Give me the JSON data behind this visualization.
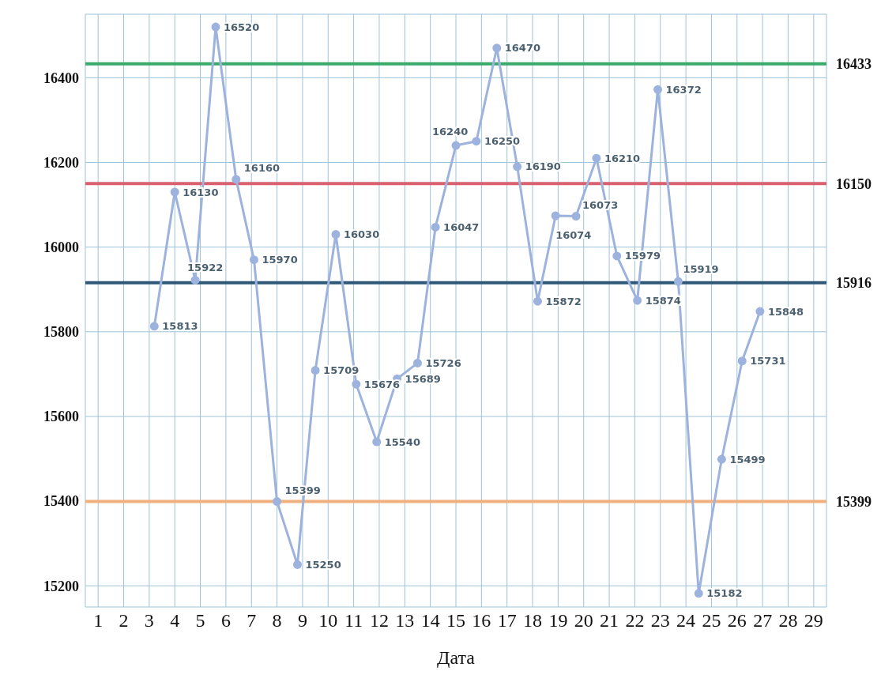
{
  "chart_data": {
    "type": "line",
    "xlabel": "Дата",
    "x": [
      3.2,
      4.0,
      4.8,
      5.6,
      6.4,
      7.1,
      8.0,
      8.8,
      9.5,
      10.3,
      11.1,
      11.9,
      12.7,
      13.5,
      14.2,
      15.0,
      15.8,
      16.6,
      17.4,
      18.2,
      18.9,
      19.7,
      20.5,
      21.3,
      22.1,
      22.9,
      23.7,
      24.5,
      25.4,
      26.2,
      26.9
    ],
    "series": [
      {
        "color": "#9db3de",
        "values": [
          15813,
          16130,
          15922,
          16520,
          16160,
          15970,
          15399,
          15250,
          15709,
          16030,
          15676,
          15540,
          15689,
          15726,
          16047,
          16240,
          16250,
          16470,
          16190,
          15872,
          16074,
          16073,
          16210,
          15979,
          15874,
          16372,
          15919,
          15182,
          15499,
          15731,
          15848
        ]
      }
    ],
    "data_labels": true,
    "marker": "circle",
    "line_style": "solid",
    "xlim": [
      0.5,
      29.5
    ],
    "xticks": [
      1,
      2,
      3,
      4,
      5,
      6,
      7,
      8,
      9,
      10,
      11,
      12,
      13,
      14,
      15,
      16,
      17,
      18,
      19,
      20,
      21,
      22,
      23,
      24,
      25,
      26,
      27,
      28,
      29
    ],
    "ylim": [
      15150,
      16550
    ],
    "yticks": [
      15200,
      15400,
      15600,
      15800,
      16000,
      16200,
      16400
    ],
    "grid": true,
    "ref_lines": [
      {
        "axis": "y",
        "value": 16433,
        "label": "16433",
        "color": "#3aaa6a"
      },
      {
        "axis": "y",
        "value": 16150,
        "label": "16150",
        "color": "#d9606e"
      },
      {
        "axis": "y",
        "value": 15916,
        "label": "15916",
        "color": "#2e5878"
      },
      {
        "axis": "y",
        "value": 15399,
        "label": "15399",
        "color": "#f0b080"
      }
    ]
  }
}
